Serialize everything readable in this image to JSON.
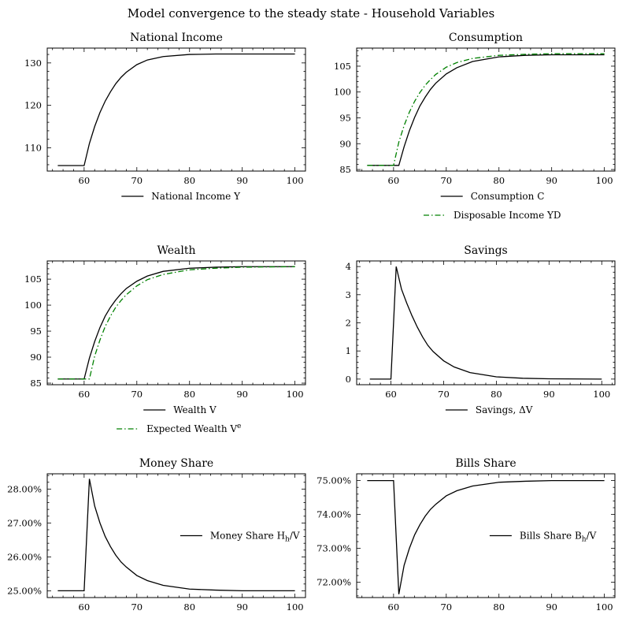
{
  "figure": {
    "suptitle": "Model convergence to the steady state - Household Variables"
  },
  "colors": {
    "black": "#000000",
    "green": "#008000"
  },
  "chart_data": [
    {
      "type": "line",
      "title": "National Income",
      "xlim": [
        53,
        102
      ],
      "ylim": [
        104.5,
        133.5
      ],
      "xticks": [
        60,
        70,
        80,
        90,
        100
      ],
      "yticks": [
        110,
        120,
        130
      ],
      "ytick_labels": [
        "110",
        "120",
        "130"
      ],
      "legend_position": "below",
      "series": [
        {
          "name": "National Income $Y$",
          "legend_label": "National Income Y",
          "color": "#000000",
          "style": "solid",
          "x": [
            55,
            60,
            61,
            62,
            63,
            64,
            65,
            66,
            67,
            68,
            70,
            72,
            75,
            80,
            85,
            90,
            100
          ],
          "y": [
            105.8,
            105.8,
            111.0,
            115.0,
            118.3,
            121.0,
            123.2,
            125.1,
            126.6,
            127.8,
            129.6,
            130.7,
            131.5,
            132.0,
            132.1,
            132.1,
            132.1
          ]
        }
      ]
    },
    {
      "type": "line",
      "title": "Consumption",
      "xlim": [
        53,
        102
      ],
      "ylim": [
        84.7,
        108.5
      ],
      "xticks": [
        60,
        70,
        80,
        90,
        100
      ],
      "yticks": [
        85,
        90,
        95,
        100,
        105
      ],
      "ytick_labels": [
        "85",
        "90",
        "95",
        "100",
        "105"
      ],
      "legend_position": "below",
      "series": [
        {
          "name": "Consumption $C$",
          "legend_label": "Consumption C",
          "color": "#000000",
          "style": "solid",
          "x": [
            55,
            61,
            62,
            63,
            64,
            65,
            66,
            67,
            68,
            70,
            72,
            75,
            80,
            85,
            90,
            100
          ],
          "y": [
            85.8,
            85.8,
            89.4,
            92.5,
            95.1,
            97.3,
            99.0,
            100.5,
            101.7,
            103.5,
            104.7,
            105.9,
            106.8,
            107.1,
            107.2,
            107.2
          ]
        },
        {
          "name": "Disposable Income $YD$",
          "legend_label": "Disposable Income YD",
          "color": "#008000",
          "style": "dashdot",
          "x": [
            55,
            60,
            61,
            62,
            63,
            64,
            65,
            66,
            67,
            68,
            70,
            72,
            75,
            80,
            85,
            90,
            100
          ],
          "y": [
            85.8,
            85.8,
            90.3,
            93.5,
            96.1,
            98.2,
            99.9,
            101.3,
            102.4,
            103.4,
            104.8,
            105.7,
            106.5,
            107.1,
            107.3,
            107.4,
            107.4
          ]
        }
      ]
    },
    {
      "type": "line",
      "title": "Wealth",
      "xlim": [
        53,
        102
      ],
      "ylim": [
        84.7,
        108.5
      ],
      "xticks": [
        60,
        70,
        80,
        90,
        100
      ],
      "yticks": [
        85,
        90,
        95,
        100,
        105
      ],
      "ytick_labels": [
        "85",
        "90",
        "95",
        "100",
        "105"
      ],
      "legend_position": "below",
      "series": [
        {
          "name": "Wealth $V$",
          "legend_label": "Wealth V",
          "color": "#000000",
          "style": "solid",
          "x": [
            55,
            60,
            61,
            62,
            63,
            64,
            65,
            66,
            67,
            68,
            70,
            72,
            75,
            80,
            85,
            90,
            100
          ],
          "y": [
            85.8,
            85.8,
            89.8,
            93.0,
            95.7,
            97.9,
            99.6,
            101.0,
            102.2,
            103.2,
            104.6,
            105.6,
            106.5,
            107.1,
            107.3,
            107.4,
            107.4
          ]
        },
        {
          "name": "Expected Wealth $V^e$",
          "legend_label": "Expected Wealth V^e",
          "color": "#008000",
          "style": "dashdot",
          "x": [
            55,
            61,
            62,
            63,
            64,
            65,
            66,
            67,
            68,
            70,
            72,
            75,
            80,
            85,
            90,
            100
          ],
          "y": [
            85.8,
            85.8,
            90.2,
            93.3,
            95.9,
            97.9,
            99.6,
            100.9,
            102.0,
            103.7,
            104.9,
            105.9,
            106.8,
            107.1,
            107.3,
            107.4
          ]
        }
      ]
    },
    {
      "type": "line",
      "title": "Savings",
      "xlim": [
        53.5,
        102.5
      ],
      "ylim": [
        -0.2,
        4.2
      ],
      "xticks": [
        60,
        70,
        80,
        90,
        100
      ],
      "yticks": [
        0,
        1,
        2,
        3,
        4
      ],
      "ytick_labels": [
        "0",
        "1",
        "2",
        "3",
        "4"
      ],
      "legend_position": "below",
      "series": [
        {
          "name": "Savings, $\\Delta V$",
          "legend_label": "Savings, ΔV",
          "color": "#000000",
          "style": "solid",
          "x": [
            56,
            60,
            61,
            62,
            63,
            64,
            65,
            66,
            67,
            68,
            70,
            72,
            75,
            80,
            85,
            90,
            100
          ],
          "y": [
            0,
            0,
            4.0,
            3.2,
            2.7,
            2.25,
            1.85,
            1.5,
            1.2,
            0.98,
            0.65,
            0.43,
            0.23,
            0.08,
            0.03,
            0.01,
            0.0
          ]
        }
      ]
    },
    {
      "type": "line",
      "title": "Money Share",
      "xlim": [
        53,
        102
      ],
      "ylim": [
        24.8,
        28.45
      ],
      "xticks": [
        60,
        70,
        80,
        90,
        100
      ],
      "yticks": [
        25,
        26,
        27,
        28
      ],
      "ytick_labels": [
        "25.00%",
        "26.00%",
        "27.00%",
        "28.00%"
      ],
      "legend_position": "center right",
      "series": [
        {
          "name": "Money Share $H_h/V$",
          "legend_label": "Money Share H_h/V",
          "color": "#000000",
          "style": "solid",
          "x": [
            55,
            60,
            61,
            62,
            63,
            64,
            65,
            66,
            67,
            68,
            70,
            72,
            75,
            80,
            85,
            90,
            100
          ],
          "y": [
            25.0,
            25.0,
            28.3,
            27.5,
            27.0,
            26.6,
            26.3,
            26.05,
            25.85,
            25.7,
            25.45,
            25.3,
            25.16,
            25.05,
            25.02,
            25.0,
            25.0
          ]
        }
      ]
    },
    {
      "type": "line",
      "title": "Bills Share",
      "xlim": [
        53,
        102
      ],
      "ylim": [
        71.55,
        75.2
      ],
      "xticks": [
        60,
        70,
        80,
        90,
        100
      ],
      "yticks": [
        72,
        73,
        74,
        75
      ],
      "ytick_labels": [
        "72.00%",
        "73.00%",
        "74.00%",
        "75.00%"
      ],
      "legend_position": "center right",
      "series": [
        {
          "name": "Bills Share $B_h/V$",
          "legend_label": "Bills Share B_h/V",
          "color": "#000000",
          "style": "solid",
          "x": [
            55,
            60,
            61,
            62,
            63,
            64,
            65,
            66,
            67,
            68,
            70,
            72,
            75,
            80,
            85,
            90,
            100
          ],
          "y": [
            75.0,
            75.0,
            71.65,
            72.5,
            73.0,
            73.4,
            73.7,
            73.95,
            74.15,
            74.3,
            74.55,
            74.7,
            74.84,
            74.95,
            74.98,
            75.0,
            75.0
          ]
        }
      ]
    }
  ]
}
